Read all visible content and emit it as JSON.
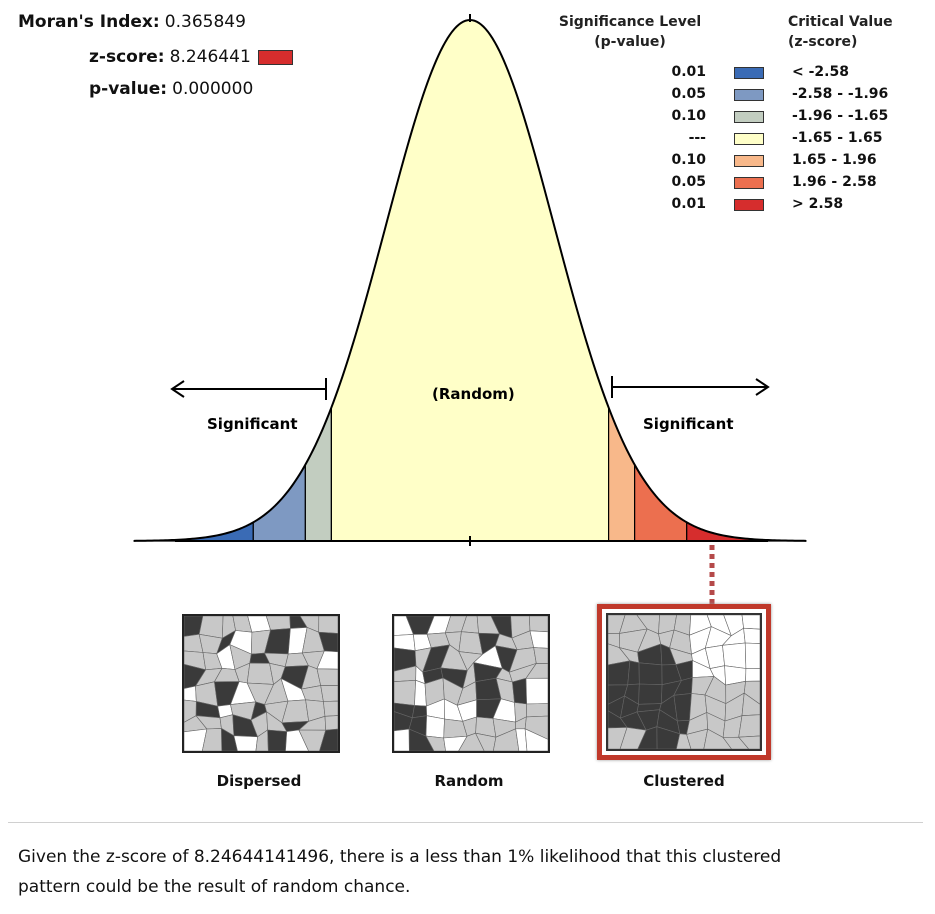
{
  "stats": {
    "moran_label": "Moran's Index:",
    "moran_value": "0.365849",
    "z_label": "z-score:",
    "z_value": "8.246441",
    "z_swatch_color": "#d62d2d",
    "p_label": "p-value:",
    "p_value": "0.000000"
  },
  "legend": {
    "sig_header_1": "Significance Level",
    "sig_header_2": "(p-value)",
    "crit_header_1": "Critical Value",
    "crit_header_2": "(z-score)",
    "rows": [
      {
        "p": "0.01",
        "z": "< -2.58",
        "color": "#3a6bb5"
      },
      {
        "p": "0.05",
        "z": "-2.58 - -1.96",
        "color": "#7e99c2"
      },
      {
        "p": "0.10",
        "z": "-1.96 - -1.65",
        "color": "#c2cdc0"
      },
      {
        "p": "---",
        "z": "-1.65 - 1.65",
        "color": "#ffffc8"
      },
      {
        "p": "0.10",
        "z": "1.65 - 1.96",
        "color": "#f8b88a"
      },
      {
        "p": "0.05",
        "z": "1.96 - 2.58",
        "color": "#ec6f4f"
      },
      {
        "p": "0.01",
        "z": "> 2.58",
        "color": "#d62d2d"
      }
    ]
  },
  "chart_data": {
    "type": "area",
    "labels": {
      "left": "Significant",
      "center": "(Random)",
      "right": "Significant"
    },
    "bands": [
      {
        "from": -4.0,
        "to": -2.58,
        "color": "#3a6bb5"
      },
      {
        "from": -2.58,
        "to": -1.96,
        "color": "#7e99c2"
      },
      {
        "from": -1.96,
        "to": -1.65,
        "color": "#c2cdc0"
      },
      {
        "from": -1.65,
        "to": 1.65,
        "color": "#ffffc8"
      },
      {
        "from": 1.65,
        "to": 1.96,
        "color": "#f8b88a"
      },
      {
        "from": 1.96,
        "to": 2.58,
        "color": "#ec6f4f"
      },
      {
        "from": 2.58,
        "to": 4.0,
        "color": "#d62d2d"
      }
    ],
    "xlim": [
      -4.0,
      4.0
    ]
  },
  "patterns": {
    "dispersed": "Dispersed",
    "random": "Random",
    "clustered": "Clustered",
    "highlight_color": "#c0392b"
  },
  "footer": {
    "line1": "Given the z-score of 8.24644141496, there is a less than 1% likelihood that this clustered",
    "line2": "pattern could be the result of random chance."
  }
}
